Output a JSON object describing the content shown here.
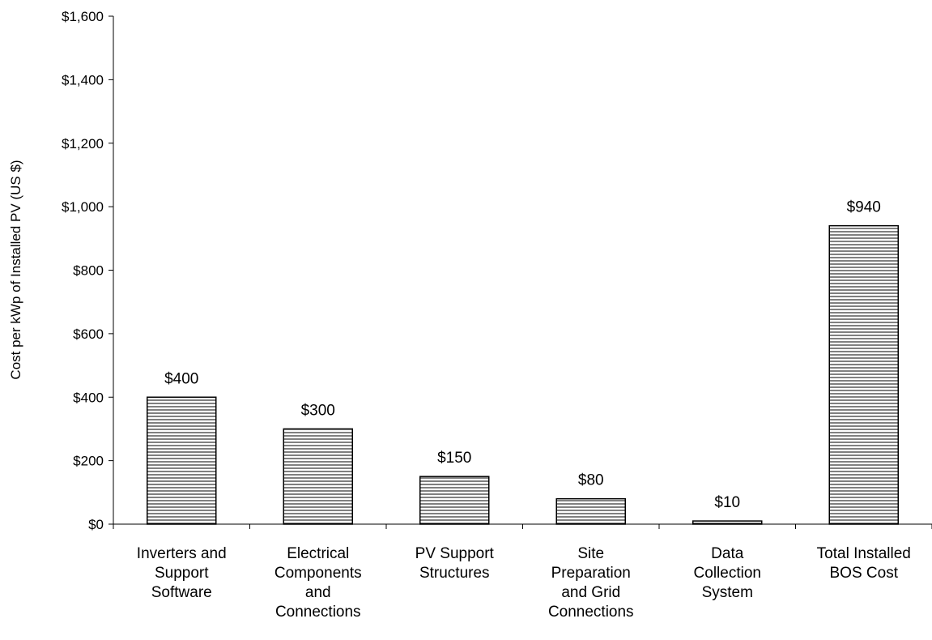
{
  "chart_data": {
    "type": "bar",
    "title": "",
    "xlabel": "",
    "ylabel": "Cost per kWp of Installed PV (US $)",
    "ylim": [
      0,
      1600
    ],
    "ytick_step": 200,
    "ytick_labels": [
      "$0",
      "$200",
      "$400",
      "$600",
      "$800",
      "$1,000",
      "$1,200",
      "$1,400",
      "$1,600"
    ],
    "categories": [
      "Inverters and Support Software",
      "Electrical Components and Connections",
      "PV Support Structures",
      "Site Preparation and Grid Connections",
      "Data Collection System",
      "Total Installed BOS Cost"
    ],
    "category_lines": [
      [
        "Inverters and",
        "Support",
        "Software"
      ],
      [
        "Electrical",
        "Components",
        "and",
        "Connections"
      ],
      [
        "PV Support",
        "Structures"
      ],
      [
        "Site",
        "Preparation",
        "and Grid",
        "Connections"
      ],
      [
        "Data",
        "Collection",
        "System"
      ],
      [
        "Total Installed",
        "BOS Cost"
      ]
    ],
    "values": [
      400,
      300,
      150,
      80,
      10,
      940
    ],
    "data_labels": [
      "$400",
      "$300",
      "$150",
      "$80",
      "$10",
      "$940"
    ],
    "grid": false,
    "legend": "none",
    "bar_pattern": "horizontal-stripes",
    "colors": {
      "bar_fill": "#ffffff",
      "bar_stripe": "#000000",
      "axis": "#000000",
      "text": "#000000"
    }
  }
}
